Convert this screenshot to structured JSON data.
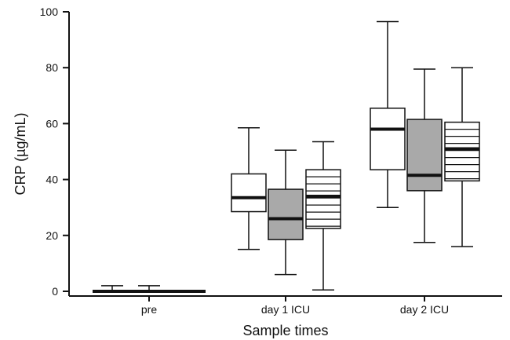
{
  "chart_data": {
    "type": "box",
    "xlabel": "Sample times",
    "ylabel": "CRP (µg/mL)",
    "ylim": [
      0,
      100
    ],
    "yticks": [
      0,
      20,
      40,
      60,
      80,
      100
    ],
    "categories": [
      "pre",
      "day 1 ICU",
      "day 2 ICU"
    ],
    "series": [
      {
        "fill": "white",
        "values": [
          {
            "min": 0,
            "q1": 0,
            "median": 0,
            "q3": 0,
            "max": 2
          },
          {
            "min": 15,
            "q1": 28.5,
            "median": 33.5,
            "q3": 42,
            "max": 58.5
          },
          {
            "min": 30,
            "q1": 43.5,
            "median": 58,
            "q3": 65.5,
            "max": 96.5
          }
        ]
      },
      {
        "fill": "gray",
        "values": [
          {
            "min": 0,
            "q1": 0,
            "median": 0,
            "q3": 0,
            "max": 0
          },
          {
            "min": 6,
            "q1": 18.5,
            "median": 26,
            "q3": 36.5,
            "max": 50.5
          },
          {
            "min": 17.5,
            "q1": 36,
            "median": 41.5,
            "q3": 61.5,
            "max": 79.5
          }
        ]
      },
      {
        "fill": "hatched",
        "values": [
          {
            "min": 0,
            "q1": 0,
            "median": 0,
            "q3": 0,
            "max": 0
          },
          {
            "min": 0.5,
            "q1": 22.5,
            "median": 34,
            "q3": 43.5,
            "max": 53.5
          },
          {
            "min": 16,
            "q1": 39.5,
            "median": 51,
            "q3": 60.5,
            "max": 80
          }
        ]
      }
    ],
    "colors": {
      "white": "#ffffff",
      "gray": "#a9a9a9",
      "line": "#111111"
    }
  }
}
